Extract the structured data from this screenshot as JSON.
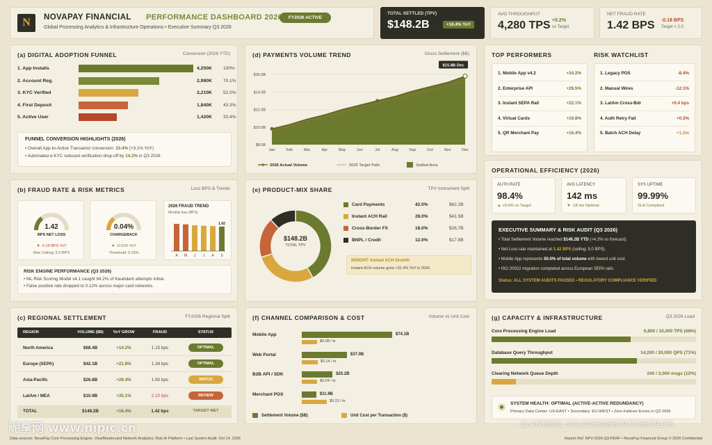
{
  "header": {
    "logo": "N",
    "brand": "NOVAPAY FINANCIAL",
    "dashboard": "PERFORMANCE DASHBOARD 2026",
    "badge": "FY2026 ACTIVE",
    "subtitle": "Global Processing Analytics & Infrastructure Operations • Executive Summary Q3 2026"
  },
  "kpis": {
    "tpv": {
      "label": "TOTAL SETTLED (TPV)",
      "value": "$148.2B",
      "delta": "+18.4% YoY"
    },
    "throughput": {
      "label": "AVG THROUGHPUT",
      "value": "4,280 TPS",
      "delta": "+5.2%",
      "note": "vs Target"
    },
    "fraud": {
      "label": "NET FRAUD RATE",
      "value": "1.42 BPS",
      "delta": "-0.18 BPS",
      "note": "Target < 2.0"
    }
  },
  "funnel": {
    "title": "(a) DIGITAL ADOPTION FUNNEL",
    "sub": "Conversion (2026 YTD)",
    "rows": [
      {
        "label": "1. App Installs",
        "value": "4,250K",
        "pct": "100%",
        "share": 1.0,
        "color": "#6b7a2e"
      },
      {
        "label": "2. Account Reg.",
        "value": "2,980K",
        "pct": "70.1%",
        "share": 0.701,
        "color": "#7b8a36"
      },
      {
        "label": "3. KYC Verified",
        "value": "2,210K",
        "pct": "52.0%",
        "share": 0.52,
        "color": "#d8a83e"
      },
      {
        "label": "4. First Deposit",
        "value": "1,840K",
        "pct": "43.3%",
        "share": 0.433,
        "color": "#c6643a"
      },
      {
        "label": "5. Active User",
        "value": "1,420K",
        "pct": "33.4%",
        "share": 0.334,
        "color": "#b4482a"
      }
    ],
    "highlights": {
      "title": "FUNNEL CONVERSION HIGHLIGHTS (2026)",
      "l1a": "• Overall App-to-Active Transactor conversion: ",
      "l1b": "33.4%",
      "l1c": " (+3.1% YoY)",
      "l2a": "• Automated e-KYC reduced verification drop-off by ",
      "l2b": "14.2%",
      "l2c": " in Q3 2026"
    }
  },
  "trend": {
    "title": "(d) PAYMENTS VOLUME TREND",
    "sub": "Gross Settlement ($B)",
    "callout": "$15.8B Dec",
    "legend": {
      "actual": "2026 Actual Volume",
      "target": "2026 Target Path",
      "area": "Settled Area"
    }
  },
  "chart_data": {
    "type": "area",
    "x": [
      "Jan",
      "Feb",
      "Mar",
      "Apr",
      "May",
      "Jun",
      "Jul",
      "Aug",
      "Sep",
      "Oct",
      "Nov",
      "Dec"
    ],
    "yticks": [
      "$16.0B",
      "$14.0B",
      "$12.0B",
      "$10.0B",
      "$8.0B"
    ],
    "ylim": [
      8,
      16
    ],
    "series": [
      {
        "name": "2026 Actual Volume",
        "values": [
          9.8,
          10.3,
          10.9,
          11.4,
          12.0,
          12.5,
          13.0,
          13.5,
          14.1,
          14.6,
          15.1,
          15.8
        ]
      },
      {
        "name": "2026 Target Path",
        "values": [
          9.6,
          10.1,
          10.7,
          11.2,
          11.7,
          12.2,
          12.7,
          13.2,
          13.7,
          14.2,
          14.7,
          15.2
        ]
      }
    ]
  },
  "fraud_panel": {
    "title": "(b) FRAUD RATE & RISK METRICS",
    "sub": "Loss BPS & Trends",
    "g1": {
      "value": "1.42",
      "label": "BPS NET LOSS",
      "delta": "▼ -0.18 BPS YoY",
      "note": "Max Ceiling: 5.0 BPS",
      "level": 0.284
    },
    "g2": {
      "value": "0.04%",
      "label": "CHARGEBACK",
      "delta": "▼ -0.01% YoY",
      "note": "Threshold: 0.15%",
      "level": 0.27
    },
    "trend": {
      "title": "2026 FRAUD TREND",
      "sub": "Monthly loss (BPS)",
      "last": "1.42",
      "months": [
        "A",
        "M",
        "J",
        "J",
        "A",
        "S"
      ],
      "values": [
        1.58,
        1.55,
        1.5,
        1.47,
        1.45,
        1.42
      ]
    },
    "engine": {
      "title": "RISK ENGINE PERFORMANCE (Q3 2026)",
      "l1": "• ML Risk Scoring Model v4.1 caught 94.2% of fraudulent attempts inline.",
      "l2": "• False positive rate dropped to 0.12% across major card networks."
    }
  },
  "mix": {
    "title": "(e) PRODUCT-MIX SHARE",
    "sub": "TPV Instrument Split",
    "center": "$148.2B",
    "center_sub": "TOTAL TPV",
    "items": [
      {
        "label": "Card Payments",
        "pct": "42.0%",
        "val": "$62.2B",
        "share": 0.42,
        "color": "#6b7a2e"
      },
      {
        "label": "Instant ACH Rail",
        "pct": "28.0%",
        "val": "$41.5B",
        "share": 0.28,
        "color": "#d8a83e"
      },
      {
        "label": "Cross-Border FX",
        "pct": "18.0%",
        "val": "$26.7B",
        "share": 0.18,
        "color": "#c6643a"
      },
      {
        "label": "BNPL / Credit",
        "pct": "12.0%",
        "val": "$17.8B",
        "share": 0.12,
        "color": "#2e2d26"
      }
    ],
    "insight_title": "INSIGHT: Instant ACH Growth",
    "insight": "Instant ACH volume grew +31.4% YoY in 2026"
  },
  "performers": {
    "title": "TOP PERFORMERS",
    "items": [
      {
        "n": "1. Mobile App v4.2",
        "v": "+34.2%"
      },
      {
        "n": "2. Enterprise API",
        "v": "+28.5%"
      },
      {
        "n": "3. Instant SEPA Rail",
        "v": "+22.1%"
      },
      {
        "n": "4. Virtual Cards",
        "v": "+19.8%"
      },
      {
        "n": "5. QR Merchant Pay",
        "v": "+16.4%"
      }
    ]
  },
  "watchlist": {
    "title": "RISK WATCHLIST",
    "items": [
      {
        "n": "1. Legacy POS",
        "v": "-8.4%",
        "c": "#b4482a"
      },
      {
        "n": "2. Manual Wires",
        "v": "-12.1%",
        "c": "#b4482a"
      },
      {
        "n": "3. LatAm Cross-Bdr",
        "v": "+0.4 bps",
        "c": "#b4482a"
      },
      {
        "n": "4. Auth Retry Fail",
        "v": "+0.3%",
        "c": "#b4482a"
      },
      {
        "n": "5. Batch ACH Delay",
        "v": "+1.2m",
        "c": "#c6843a"
      }
    ]
  },
  "ops": {
    "title": "OPERATIONAL EFFICIENCY (2026)",
    "c1": {
      "label": "AUTH RATE",
      "value": "98.4%",
      "note": "▲ +0.6% vs Target"
    },
    "c2": {
      "label": "AVG LATENCY",
      "value": "142 ms",
      "note": "▼ -18 ms Optimal"
    },
    "c3": {
      "label": "SYS UPTIME",
      "value": "99.99%",
      "note": "SLA Compliant"
    }
  },
  "exec": {
    "title": "EXECUTIVE SUMMARY & RISK AUDIT (Q3 2026)",
    "l1a": "• Total Settlement Volume reached ",
    "l1b": "$148.2B YTD",
    "l1c": " (+4.2% vs forecast).",
    "l2a": "• Net Loss rate maintained at ",
    "l2b": "1.42 BPS",
    "l2c": " (ceiling: 5.0 BPS).",
    "l3a": "• Mobile App represents ",
    "l3b": "50.0% of total volume",
    "l3c": " with lowest unit cost.",
    "l4": "• ISO 20022 migration completed across European SEPA rails.",
    "status": "Status: ALL SYSTEM AUDITS PASSED • REGULATORY COMPLIANCE VERIFIED"
  },
  "regional": {
    "title": "(c) REGIONAL SETTLEMENT",
    "sub": "FY2026 Regional Split",
    "headers": [
      "REGION",
      "VOLUME ($B)",
      "YoY GROW",
      "FRAUD",
      "STATUS"
    ],
    "rows": [
      {
        "r": "North America",
        "v": "$68.4B",
        "g": "+14.2%",
        "f": "1.15 bps",
        "s": "OPTIMAL",
        "sc": "#6b7a2e",
        "fc": "#4a473d"
      },
      {
        "r": "Europe (SEPA)",
        "v": "$42.1B",
        "g": "+21.8%",
        "f": "1.38 bps",
        "s": "OPTIMAL",
        "sc": "#6b7a2e",
        "fc": "#4a473d"
      },
      {
        "r": "Asia-Pacific",
        "v": "$26.8B",
        "g": "+28.4%",
        "f": "1.65 bps",
        "s": "WATCH",
        "sc": "#d8a83e",
        "fc": "#4a473d"
      },
      {
        "r": "LatAm / MEA",
        "v": "$10.9B",
        "g": "+35.1%",
        "f": "2.10 bps",
        "s": "REVIEW",
        "sc": "#c6643a",
        "fc": "#b4482a"
      }
    ],
    "total": {
      "r": "TOTAL",
      "v": "$148.2B",
      "g": "+18.4%",
      "f": "1.42 bps",
      "s": "TARGET MET"
    }
  },
  "channel": {
    "title": "(f) CHANNEL COMPARISON & COST",
    "sub": "Volume vs Unit Cost",
    "rows": [
      {
        "n": "Mobile App",
        "v": "$74.1B",
        "vol": 74.1,
        "c": "$0.08 / tx",
        "cost": 0.08
      },
      {
        "n": "Web Portal",
        "v": "$37.0B",
        "vol": 37.0,
        "c": "$0.14 / tx",
        "cost": 0.14
      },
      {
        "n": "B2B API / SDK",
        "v": "$25.2B",
        "vol": 25.2,
        "c": "$0.04 / tx",
        "cost": 0.04
      },
      {
        "n": "Merchant POS",
        "v": "$11.9B",
        "vol": 11.9,
        "c": "$0.22 / tx",
        "cost": 0.22
      }
    ],
    "legend_vol": "Settlement Volume ($B)",
    "legend_cost": "Unit Cost per Transaction ($)"
  },
  "capacity": {
    "title": "(g) CAPACITY & INFRASTRUCTURE",
    "sub": "Q3 2026 Load",
    "rows": [
      {
        "n": "Core Processing Engine Load",
        "v": "6,800 / 10,000 TPS (68%)",
        "p": 0.68
      },
      {
        "n": "Database Query Throughput",
        "v": "14,200 / 20,000 QPS (71%)",
        "p": 0.71
      },
      {
        "n": "Clearing Network Queue Depth",
        "v": "240 / 2,000 msgs (12%)",
        "p": 0.12
      }
    ],
    "health": "SYSTEM HEALTH: OPTIMAL (ACTIVE-ACTIVE REDUNDANCY)",
    "health_sub": "Primary Data Center: US-EAST • Secondary: EU-WEST • Zero Failover Errors in Q3 2026"
  },
  "footer": {
    "left": "Data sources: NovaPay Core Processing Engine, Visa/Mastercard Network Analytics, Risk AI Platform • Last System Audit: Oct 14, 2026",
    "right": "Report Ref: NPV-2026-Q3-PERF • NovaPay Financial Group © 2026 Confidential"
  },
  "watermark": "昵享网 www.nipic.cn",
  "watermark_id": "ID:2083881 NO:20260808093708309106"
}
